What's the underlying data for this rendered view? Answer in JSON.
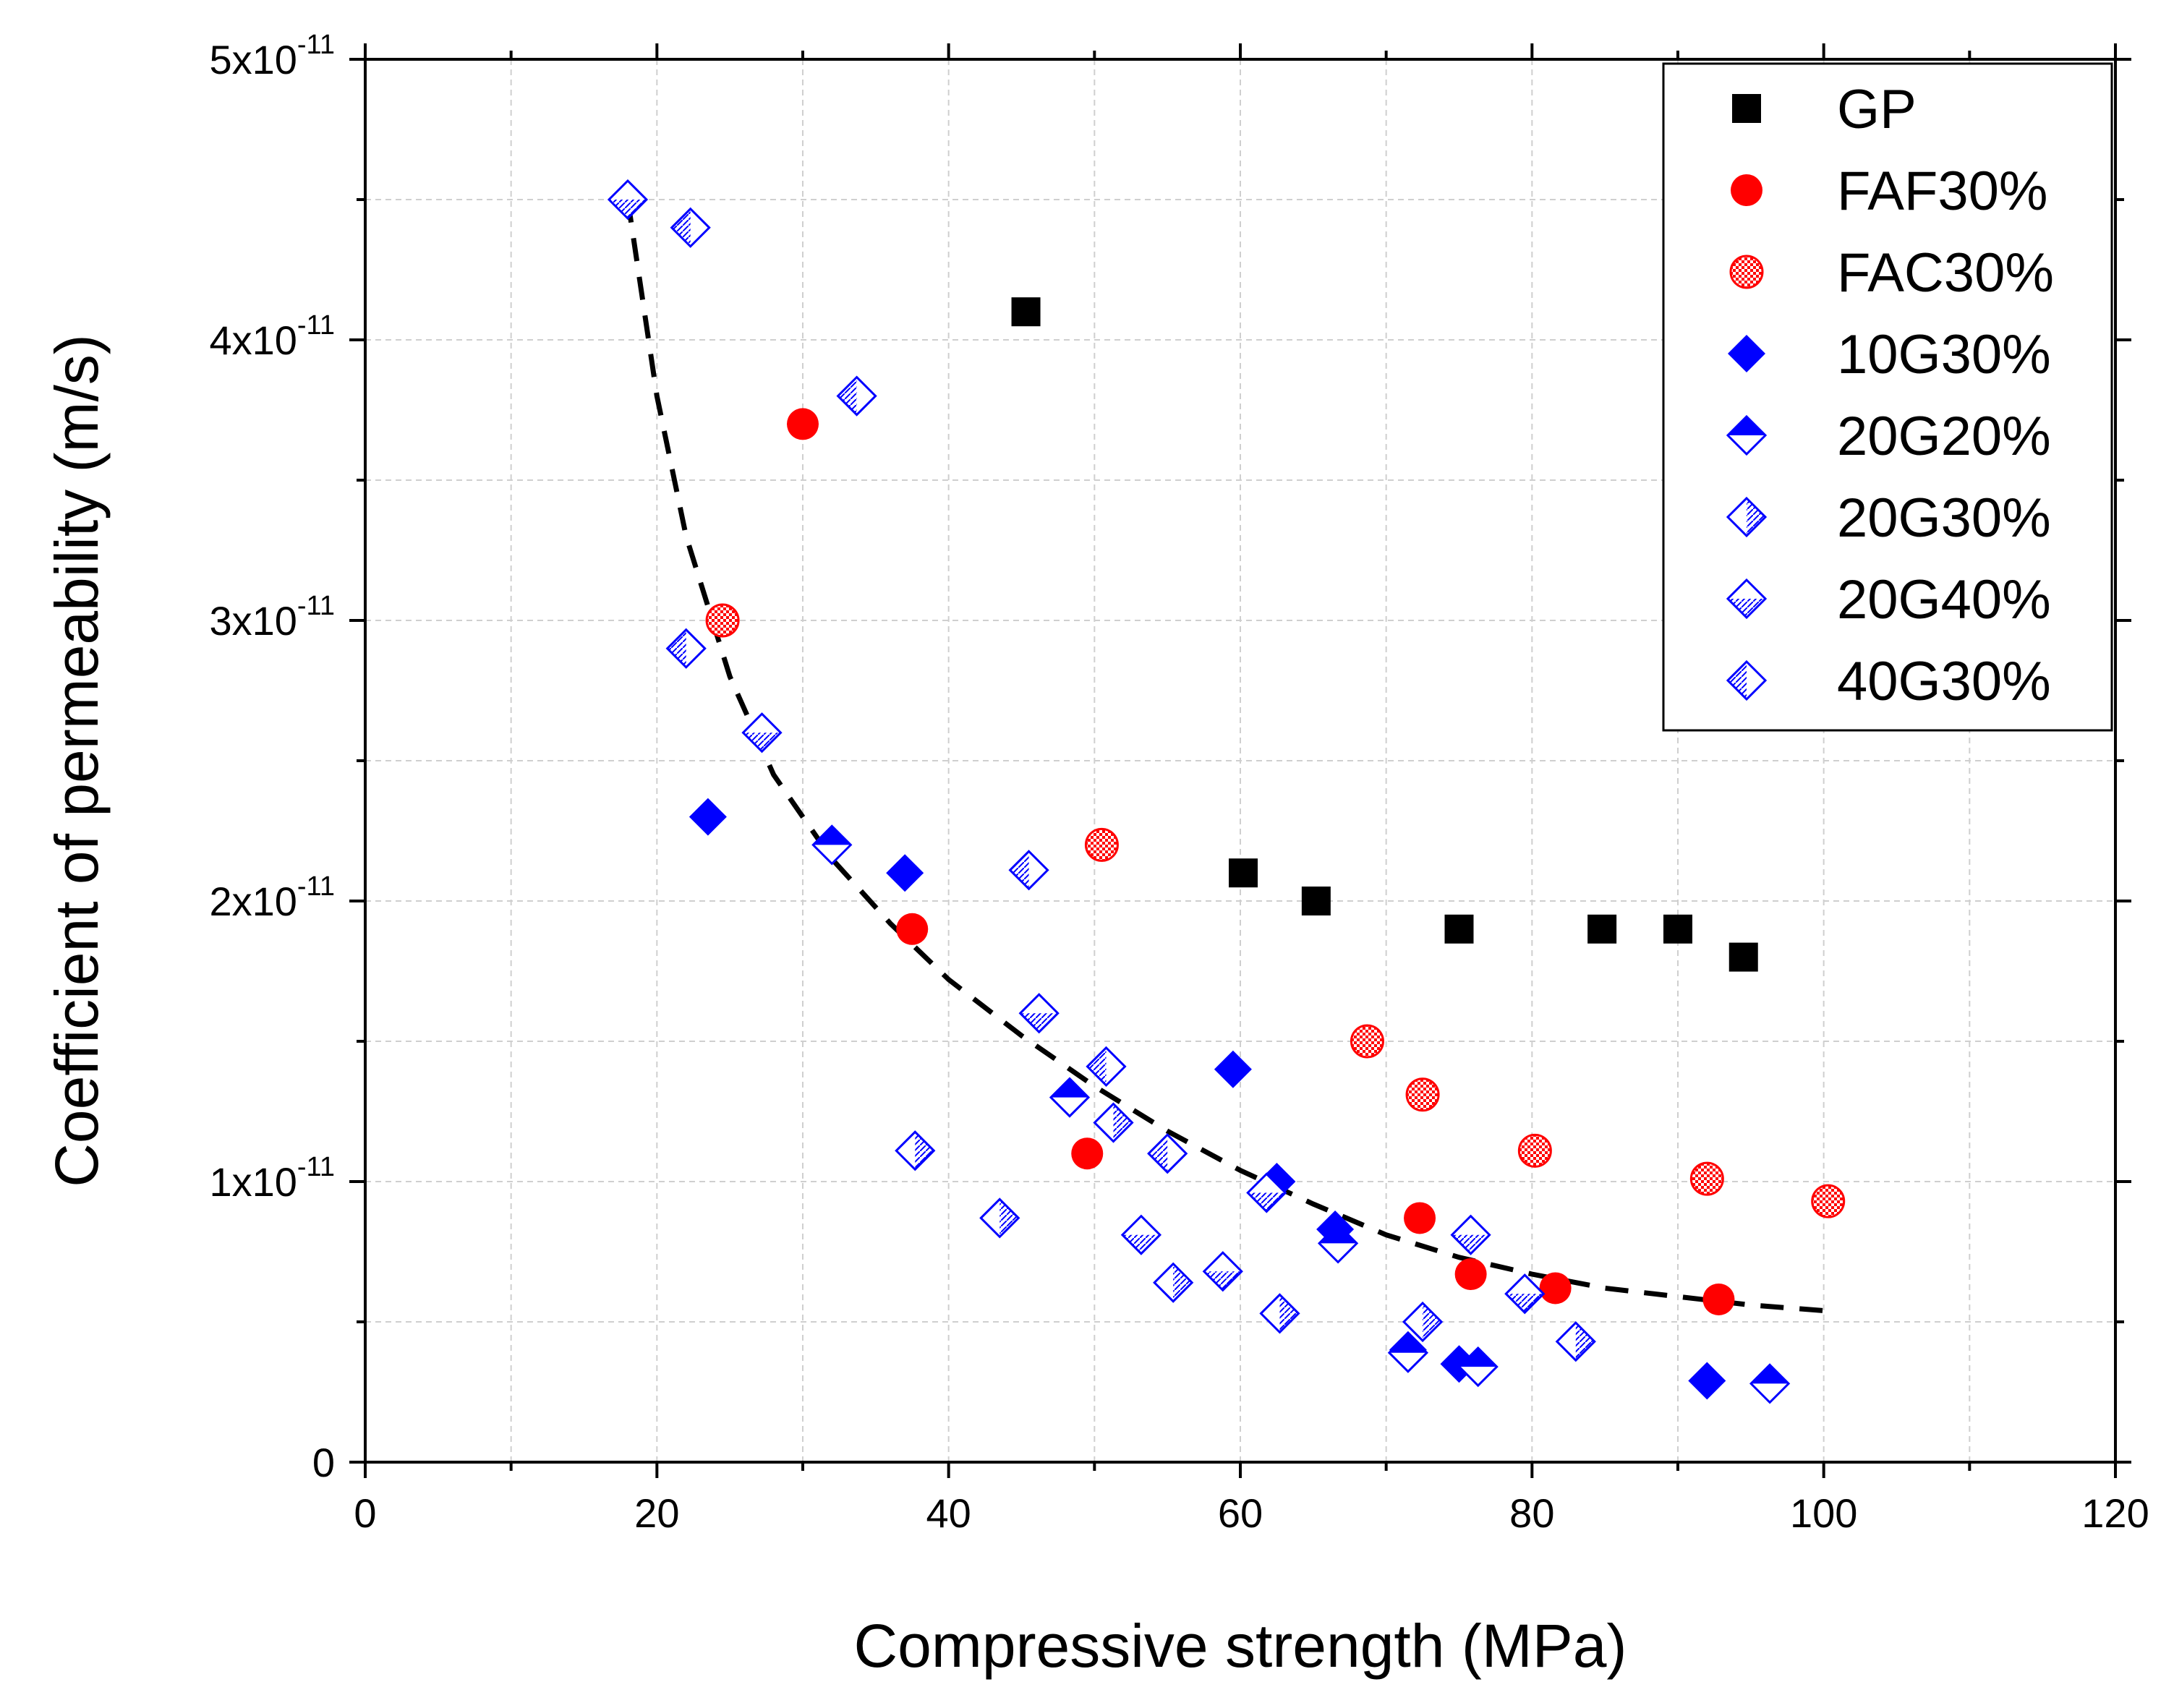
{
  "chart_data": {
    "type": "scatter",
    "title": "",
    "xlabel": "Compressive strength (MPa)",
    "ylabel": "Coefficient of permeability (m/s)",
    "xlim": [
      0,
      120
    ],
    "ylim": [
      0,
      5e-11
    ],
    "grid": true,
    "legend_position": "top-right",
    "x_ticks": [
      {
        "value": 0,
        "label": "0"
      },
      {
        "value": 20,
        "label": "20"
      },
      {
        "value": 40,
        "label": "40"
      },
      {
        "value": 60,
        "label": "60"
      },
      {
        "value": 80,
        "label": "80"
      },
      {
        "value": 100,
        "label": "100"
      },
      {
        "value": 120,
        "label": "120"
      }
    ],
    "y_ticks": [
      {
        "value": 0,
        "mantissa": "0",
        "exponent": ""
      },
      {
        "value": 1e-11,
        "mantissa": "1x10",
        "exponent": "-11"
      },
      {
        "value": 2e-11,
        "mantissa": "2x10",
        "exponent": "-11"
      },
      {
        "value": 3e-11,
        "mantissa": "3x10",
        "exponent": "-11"
      },
      {
        "value": 4e-11,
        "mantissa": "4x10",
        "exponent": "-11"
      },
      {
        "value": 5e-11,
        "mantissa": "5x10",
        "exponent": "-11"
      }
    ],
    "series": [
      {
        "name": "GP",
        "marker": "square",
        "color": "#000000",
        "points": [
          [
            45.3,
            4.1e-11
          ],
          [
            60.2,
            2.1e-11
          ],
          [
            65.2,
            2e-11
          ],
          [
            75.0,
            1.9e-11
          ],
          [
            84.8,
            1.9e-11
          ],
          [
            90.0,
            1.9e-11
          ],
          [
            94.5,
            1.8e-11
          ]
        ]
      },
      {
        "name": "FAF30%",
        "marker": "circle",
        "color": "#ff0000",
        "points": [
          [
            30.0,
            3.7e-11
          ],
          [
            37.5,
            1.9e-11
          ],
          [
            49.5,
            1.1e-11
          ],
          [
            72.3,
            8.7e-12
          ],
          [
            75.8,
            6.7e-12
          ],
          [
            81.6,
            6.2e-12
          ],
          [
            92.8,
            5.8e-12
          ]
        ]
      },
      {
        "name": "FAC30%",
        "marker": "circle-hatched",
        "color": "#ff0000",
        "points": [
          [
            24.5,
            3e-11
          ],
          [
            50.5,
            2.2e-11
          ],
          [
            68.7,
            1.5e-11
          ],
          [
            72.5,
            1.31e-11
          ],
          [
            80.2,
            1.11e-11
          ],
          [
            92.0,
            1.01e-11
          ],
          [
            100.3,
            9.3e-12
          ]
        ]
      },
      {
        "name": "10G30%",
        "marker": "diamond",
        "color": "#0000ff",
        "points": [
          [
            23.5,
            2.3e-11
          ],
          [
            37.0,
            2.1e-11
          ],
          [
            59.5,
            1.4e-11
          ],
          [
            62.5,
            1e-11
          ],
          [
            66.5,
            8.3e-12
          ],
          [
            71.5,
            4e-12
          ],
          [
            75.0,
            3.5e-12
          ],
          [
            92.0,
            2.9e-12
          ]
        ]
      },
      {
        "name": "20G20%",
        "marker": "diamond-half-top",
        "color": "#0000ff",
        "points": [
          [
            32.0,
            2.2e-11
          ],
          [
            48.3,
            1.3e-11
          ],
          [
            66.7,
            7.8e-12
          ],
          [
            71.5,
            3.9e-12
          ],
          [
            76.3,
            3.4e-12
          ],
          [
            96.3,
            2.8e-12
          ]
        ]
      },
      {
        "name": "20G30%",
        "marker": "diamond-half-right",
        "color": "#0000ff",
        "points": [
          [
            37.7,
            1.11e-11
          ],
          [
            43.5,
            8.7e-12
          ],
          [
            51.3,
            1.21e-11
          ],
          [
            55.4,
            6.4e-12
          ],
          [
            62.7,
            5.3e-12
          ],
          [
            72.5,
            5e-12
          ],
          [
            83.0,
            4.3e-12
          ]
        ]
      },
      {
        "name": "20G40%",
        "marker": "diamond-half-bottom",
        "color": "#0000ff",
        "points": [
          [
            18.0,
            4.5e-11
          ],
          [
            27.2,
            2.6e-11
          ],
          [
            46.2,
            1.6e-11
          ],
          [
            53.2,
            8.1e-12
          ],
          [
            58.8,
            6.8e-12
          ],
          [
            61.8,
            9.6e-12
          ],
          [
            75.8,
            8.1e-12
          ],
          [
            79.5,
            6e-12
          ]
        ]
      },
      {
        "name": "40G30%",
        "marker": "diamond-half-left",
        "color": "#0000ff",
        "points": [
          [
            22.3,
            4.4e-11
          ],
          [
            22.0,
            2.9e-11
          ],
          [
            33.7,
            3.8e-11
          ],
          [
            45.5,
            2.11e-11
          ],
          [
            50.8,
            1.41e-11
          ],
          [
            55.0,
            1.1e-11
          ]
        ]
      }
    ],
    "trendline": {
      "name": "fit",
      "style": "dashed",
      "color": "#000000",
      "points": [
        [
          18,
          4.5e-11
        ],
        [
          20,
          3.8e-11
        ],
        [
          22,
          3.3e-11
        ],
        [
          25,
          2.8e-11
        ],
        [
          28,
          2.45e-11
        ],
        [
          32,
          2.15e-11
        ],
        [
          36,
          1.92e-11
        ],
        [
          40,
          1.72e-11
        ],
        [
          45,
          1.52e-11
        ],
        [
          50,
          1.34e-11
        ],
        [
          55,
          1.18e-11
        ],
        [
          60,
          1.04e-11
        ],
        [
          65,
          9.2e-12
        ],
        [
          70,
          8.1e-12
        ],
        [
          75,
          7.3e-12
        ],
        [
          80,
          6.7e-12
        ],
        [
          85,
          6.2e-12
        ],
        [
          90,
          5.9e-12
        ],
        [
          95,
          5.6e-12
        ],
        [
          100,
          5.4e-12
        ]
      ]
    }
  }
}
